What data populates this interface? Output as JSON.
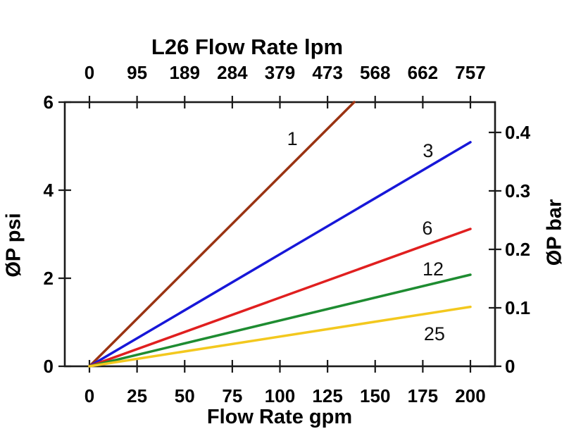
{
  "chart": {
    "title": "L26 Flow Rate lpm",
    "xlabel_bottom": "Flow Rate gpm",
    "ylabel_left": "ØP psi",
    "ylabel_right": "ØP bar"
  },
  "chart_data": {
    "type": "line",
    "title": "L26 Flow Rate lpm",
    "xlabel": "Flow Rate gpm",
    "xlabel_top": "L26 Flow Rate lpm",
    "ylabel_left": "ØP psi",
    "ylabel_right": "ØP bar",
    "xlim_gpm": [
      0,
      200
    ],
    "ylim_psi": [
      0,
      6
    ],
    "ylim_bar": [
      0,
      0.452
    ],
    "grid": false,
    "legend": "inline-line-labels",
    "x_ticks_gpm": [
      "0",
      "25",
      "50",
      "75",
      "100",
      "125",
      "150",
      "175",
      "200"
    ],
    "x_tick_values_gpm": [
      0,
      25,
      50,
      75,
      100,
      125,
      150,
      175,
      200
    ],
    "x_ticks_lpm": [
      "0",
      "95",
      "189",
      "284",
      "379",
      "473",
      "568",
      "662",
      "757"
    ],
    "y_ticks_psi": [
      "0",
      "2",
      "4",
      "6"
    ],
    "y_tick_values_psi": [
      0,
      2,
      4,
      6
    ],
    "y_ticks_bar": [
      "0",
      "0.1",
      "0.2",
      "0.3",
      "0.4"
    ],
    "y_tick_values_bar": [
      0,
      0.1,
      0.2,
      0.3,
      0.4
    ],
    "series": [
      {
        "name": "1",
        "color": "#9A3312",
        "points": [
          [
            0,
            0
          ],
          [
            139,
            6.0
          ]
        ]
      },
      {
        "name": "3",
        "color": "#1717D8",
        "points": [
          [
            0,
            0
          ],
          [
            200,
            5.09
          ]
        ]
      },
      {
        "name": "6",
        "color": "#E01F1F",
        "points": [
          [
            0,
            0
          ],
          [
            200,
            3.12
          ]
        ]
      },
      {
        "name": "12",
        "color": "#1E8C31",
        "points": [
          [
            0,
            0
          ],
          [
            200,
            2.08
          ]
        ]
      },
      {
        "name": "25",
        "color": "#F3C81E",
        "points": [
          [
            0,
            0
          ],
          [
            200,
            1.35
          ]
        ]
      }
    ],
    "series_labels": [
      {
        "text": "1",
        "gpm": 106.5,
        "psi": 5.17
      },
      {
        "text": "3",
        "gpm": 177.8,
        "psi": 4.9
      },
      {
        "text": "6",
        "gpm": 177.4,
        "psi": 3.14
      },
      {
        "text": "12",
        "gpm": 180.4,
        "psi": 2.21
      },
      {
        "text": "25",
        "gpm": 181.1,
        "psi": 0.74
      }
    ],
    "axis_color": "#1a1a1a",
    "text_color": "#000000"
  }
}
